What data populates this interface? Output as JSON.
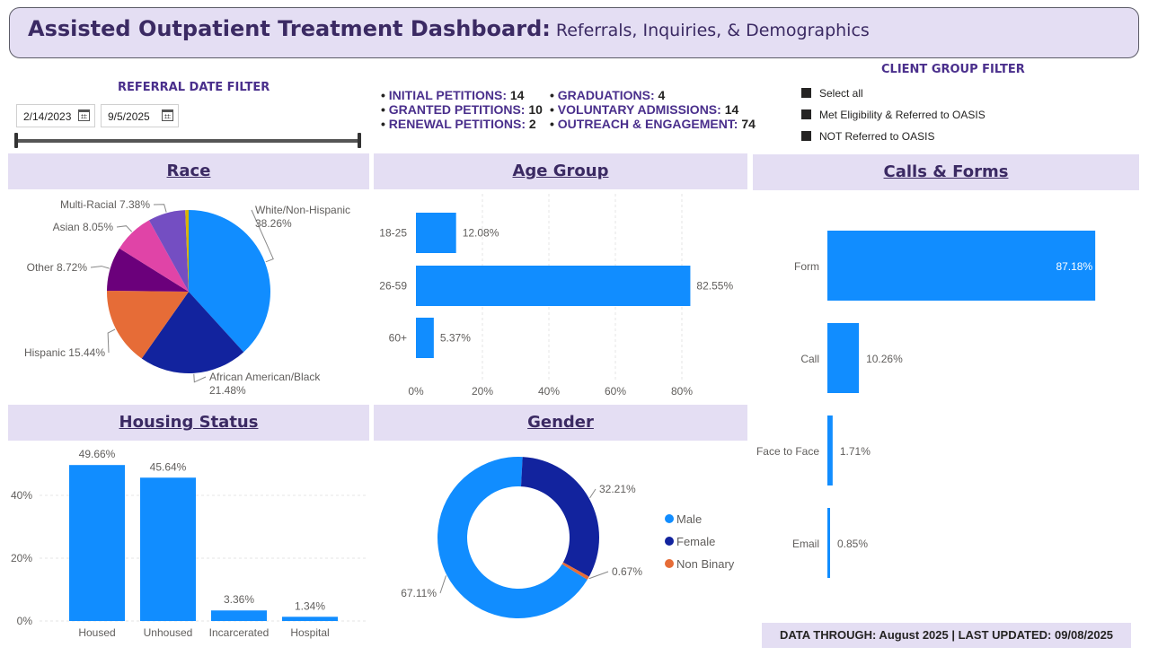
{
  "header": {
    "title": "Assisted Outpatient Treatment Dashboard:",
    "subtitle": "Referrals, Inquiries, & Demographics"
  },
  "date_filter": {
    "title": "REFERRAL DATE FILTER",
    "start": "2/14/2023",
    "end": "9/5/2025"
  },
  "stats": [
    {
      "label": "INITIAL PETITIONS:",
      "value": "14"
    },
    {
      "label": "GRANTED PETITIONS:",
      "value": "10"
    },
    {
      "label": "RENEWAL PETITIONS:",
      "value": "2"
    },
    {
      "label": "GRADUATIONS:",
      "value": "4"
    },
    {
      "label": "VOLUNTARY ADMISSIONS:",
      "value": "14"
    },
    {
      "label": "OUTREACH & ENGAGEMENT:",
      "value": "74"
    }
  ],
  "client_group_filter": {
    "title": "CLIENT GROUP FILTER",
    "options": [
      "Select all",
      "Met Eligibility & Referred to OASIS",
      "NOT Referred to OASIS"
    ]
  },
  "panels": {
    "race": "Race",
    "age": "Age Group",
    "calls": "Calls & Forms",
    "housing": "Housing Status",
    "gender": "Gender"
  },
  "footer": "DATA THROUGH: August 2025 | LAST UPDATED: 09/08/2025",
  "colors": {
    "accent": "#3b2a63",
    "panel_bg": "#e4def3",
    "bar": "#118dff",
    "navy": "#12239e",
    "orange": "#e66c37"
  },
  "chart_data": [
    {
      "id": "race",
      "type": "pie",
      "slices": [
        {
          "name": "White/Non-Hispanic",
          "value": 38.26,
          "label": "38.26%",
          "color": "#118dff"
        },
        {
          "name": "African American/Black",
          "value": 21.48,
          "label": "21.48%",
          "color": "#12239e"
        },
        {
          "name": "Hispanic",
          "value": 15.44,
          "label": "15.44%",
          "color": "#e66c37"
        },
        {
          "name": "Other",
          "value": 8.72,
          "label": "8.72%",
          "color": "#6b007b"
        },
        {
          "name": "Asian",
          "value": 8.05,
          "label": "8.05%",
          "color": "#e044a7"
        },
        {
          "name": "Multi-Racial",
          "value": 7.38,
          "label": "7.38%",
          "color": "#744ec2"
        },
        {
          "name": "",
          "value": 0.67,
          "label": "",
          "color": "#d9b300"
        }
      ]
    },
    {
      "id": "age",
      "type": "bar",
      "orientation": "horizontal",
      "categories": [
        "18-25",
        "26-59",
        "60+"
      ],
      "values": [
        12.08,
        82.55,
        5.37
      ],
      "labels": [
        "12.08%",
        "82.55%",
        "5.37%"
      ],
      "xticks": [
        "0%",
        "20%",
        "40%",
        "60%",
        "80%"
      ],
      "xlim": [
        0,
        80
      ],
      "grid": true
    },
    {
      "id": "calls",
      "type": "bar",
      "orientation": "horizontal",
      "categories": [
        "Form",
        "Call",
        "Face to Face",
        "Email"
      ],
      "values": [
        87.18,
        10.26,
        1.71,
        0.85
      ],
      "labels": [
        "87.18%",
        "10.26%",
        "1.71%",
        "0.85%"
      ]
    },
    {
      "id": "housing",
      "type": "bar",
      "orientation": "vertical",
      "categories": [
        "Housed",
        "Unhoused",
        "Incarcerated",
        "Hospital"
      ],
      "values": [
        49.66,
        45.64,
        3.36,
        1.34
      ],
      "labels": [
        "49.66%",
        "45.64%",
        "3.36%",
        "1.34%"
      ],
      "yticks": [
        "0%",
        "20%",
        "40%"
      ],
      "grid": true
    },
    {
      "id": "gender",
      "type": "pie",
      "donut": true,
      "legend": "right",
      "slices": [
        {
          "name": "Male",
          "value": 67.11,
          "label": "67.11%",
          "color": "#118dff"
        },
        {
          "name": "Female",
          "value": 32.21,
          "label": "32.21%",
          "color": "#12239e"
        },
        {
          "name": "Non Binary",
          "value": 0.67,
          "label": "0.67%",
          "color": "#e66c37"
        }
      ]
    }
  ]
}
